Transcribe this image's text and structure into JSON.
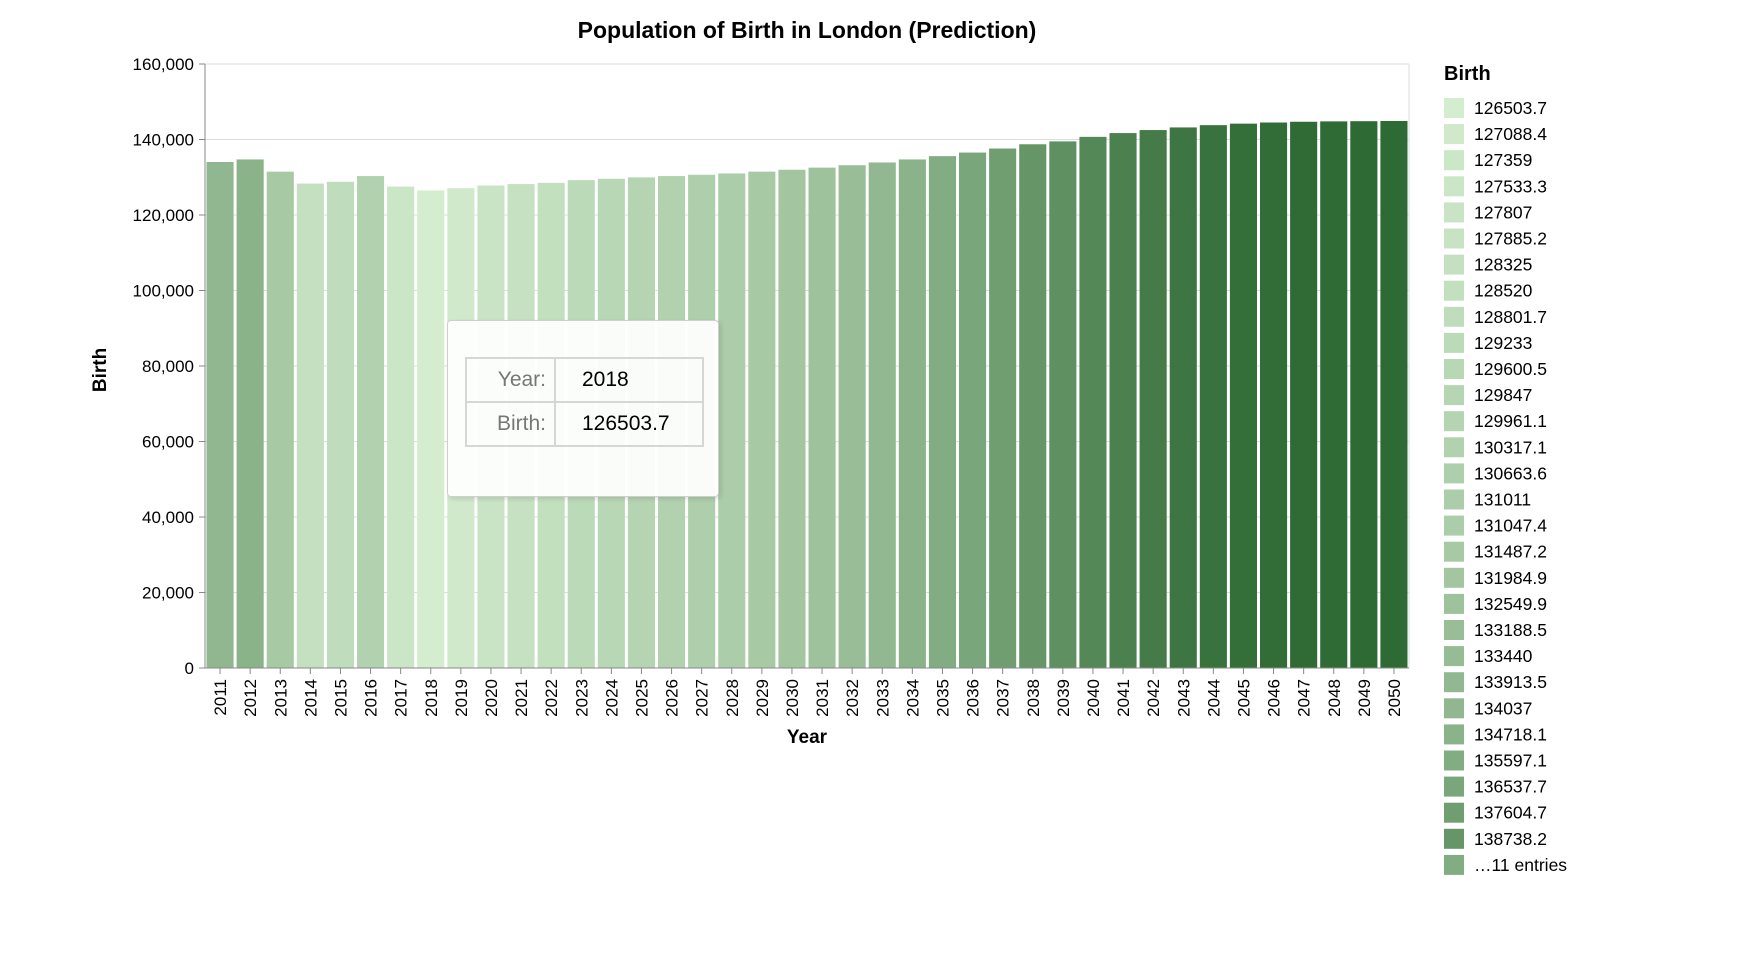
{
  "chart_data": {
    "type": "bar",
    "title": "Population of Birth in London (Prediction)",
    "xlabel": "Year",
    "ylabel": "Birth",
    "ylim": [
      0,
      160000
    ],
    "yticks": [
      "0",
      "20,000",
      "40,000",
      "60,000",
      "80,000",
      "100,000",
      "120,000",
      "140,000",
      "160,000"
    ],
    "grid": true,
    "categories": [
      "2011",
      "2012",
      "2013",
      "2014",
      "2015",
      "2016",
      "2017",
      "2018",
      "2019",
      "2020",
      "2021",
      "2022",
      "2023",
      "2024",
      "2025",
      "2026",
      "2027",
      "2028",
      "2029",
      "2030",
      "2031",
      "2032",
      "2033",
      "2034",
      "2035",
      "2036",
      "2037",
      "2038",
      "2039",
      "2040",
      "2041",
      "2042",
      "2043",
      "2044",
      "2045",
      "2046",
      "2047",
      "2048",
      "2049",
      "2050"
    ],
    "values": [
      134037,
      134718.1,
      131487.2,
      128325,
      128801.7,
      130317.1,
      127533.3,
      126503.7,
      127088.4,
      127807,
      128200,
      128520,
      129233,
      129600.5,
      129961.1,
      130317.1,
      130663.6,
      131011,
      131487.2,
      131984.9,
      132549.9,
      133188.5,
      133913.5,
      134718.1,
      135597.1,
      136537.7,
      137604.7,
      138738.2,
      139500,
      140700,
      141700,
      142500,
      143200,
      143800,
      144200,
      144500,
      144700,
      144800,
      144850,
      144900
    ],
    "color_range": [
      "#d4edcf",
      "#2e6a34"
    ],
    "legend": {
      "title": "Birth",
      "placement": "right",
      "entries": [
        "126503.7",
        "127088.4",
        "127359",
        "127533.3",
        "127807",
        "127885.2",
        "128325",
        "128520",
        "128801.7",
        "129233",
        "129600.5",
        "129847",
        "129961.1",
        "130317.1",
        "130663.6",
        "131011",
        "131047.4",
        "131487.2",
        "131984.9",
        "132549.9",
        "133188.5",
        "133440",
        "133913.5",
        "134037",
        "134718.1",
        "135597.1",
        "136537.7",
        "137604.7",
        "138738.2",
        "…11 entries"
      ]
    },
    "tooltip": {
      "year_label": "Year:",
      "year_value": "2018",
      "birth_label": "Birth:",
      "birth_value": "126503.7"
    }
  }
}
